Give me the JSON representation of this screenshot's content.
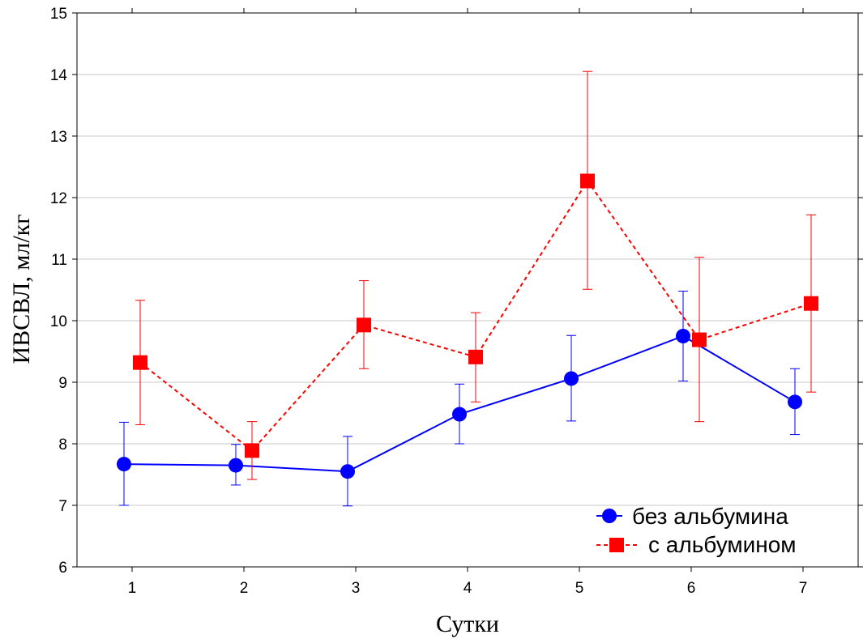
{
  "chart_data": {
    "type": "line",
    "xlabel": "Сутки",
    "ylabel": "ИВСВЛ, мл/кг",
    "categories": [
      "1",
      "2",
      "3",
      "4",
      "5",
      "6",
      "7"
    ],
    "ylim": [
      6,
      15
    ],
    "yticks": [
      "6",
      "7",
      "8",
      "9",
      "10",
      "11",
      "12",
      "13",
      "14",
      "15"
    ],
    "grid": true,
    "legend_position": "bottom-right",
    "series": [
      {
        "name": "без альбумина",
        "color": "#0000ff",
        "marker": "circle",
        "line_style": "solid",
        "values": [
          7.67,
          7.65,
          7.55,
          8.48,
          9.06,
          9.75,
          8.68
        ],
        "err_low": [
          7.0,
          7.33,
          6.99,
          8.0,
          8.37,
          9.02,
          8.15
        ],
        "err_high": [
          8.35,
          7.99,
          8.12,
          8.97,
          9.76,
          10.48,
          9.22
        ]
      },
      {
        "name": "с альбумином",
        "color": "#ff0000",
        "marker": "square",
        "line_style": "dashed",
        "values": [
          9.32,
          7.89,
          9.93,
          9.41,
          12.27,
          9.69,
          10.28
        ],
        "err_low": [
          8.31,
          7.42,
          9.22,
          8.68,
          10.51,
          8.36,
          8.84
        ],
        "err_high": [
          10.33,
          8.36,
          10.65,
          10.13,
          14.05,
          11.03,
          11.72
        ]
      }
    ]
  }
}
